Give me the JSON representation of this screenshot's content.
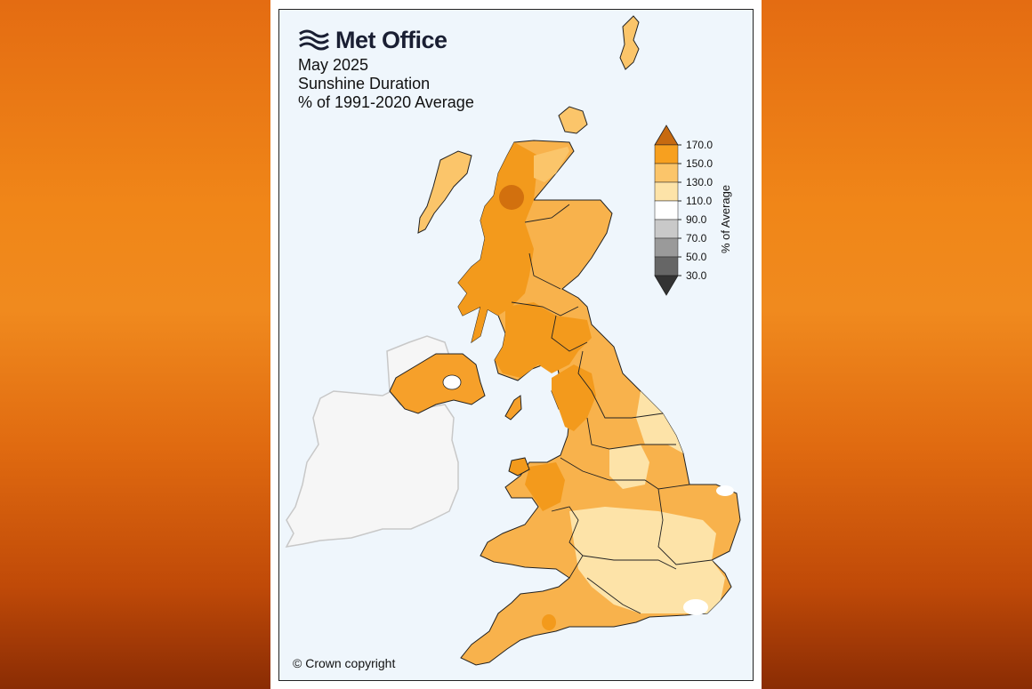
{
  "logo": {
    "text": "Met Office"
  },
  "title": {
    "line1": "May 2025",
    "line2": "Sunshine Duration",
    "line3": "% of 1991-2020 Average"
  },
  "colorbar": {
    "label": "% of Average",
    "ticks": [
      "170.0",
      "150.0",
      "130.0",
      "110.0",
      "90.0",
      "70.0",
      "50.0",
      "30.0"
    ],
    "colors": {
      "over": "#c76a10",
      "150-170": "#f7a01f",
      "130-150": "#fbc56a",
      "110-130": "#fde3a8",
      "90-110": "#ffffff",
      "70-90": "#c9c9c9",
      "50-70": "#9a9a9a",
      "30-50": "#666666",
      "under": "#333333"
    }
  },
  "copyright": "© Crown copyright"
}
